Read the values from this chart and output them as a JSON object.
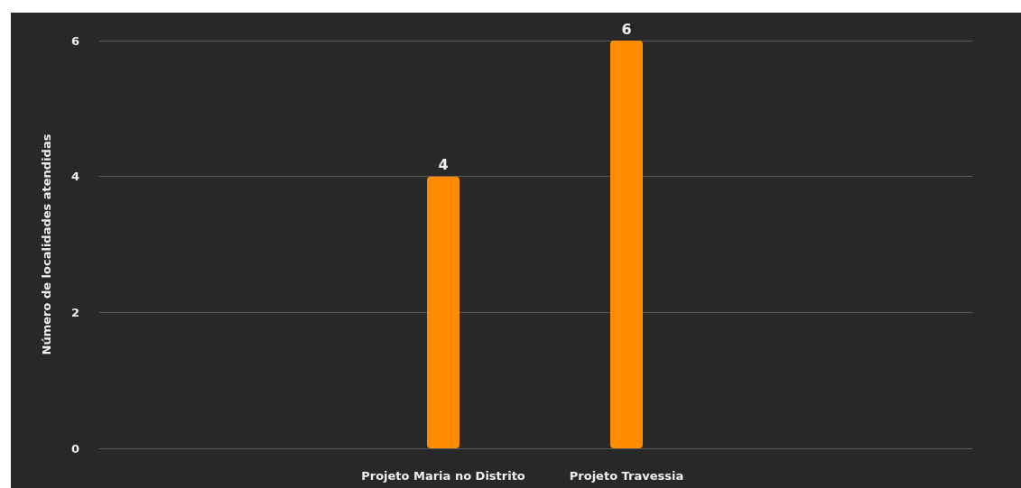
{
  "chart_data": {
    "type": "bar",
    "ylabel": "Número de localidades atendidas",
    "categories": [
      "Projeto Maria no Distrito",
      "Projeto Travessia"
    ],
    "values": [
      4,
      6
    ],
    "color": "#ff8c00",
    "data_labels": true,
    "ylim": [
      0,
      6
    ],
    "yticks": [
      0,
      2,
      4,
      6
    ],
    "grid": "y"
  }
}
